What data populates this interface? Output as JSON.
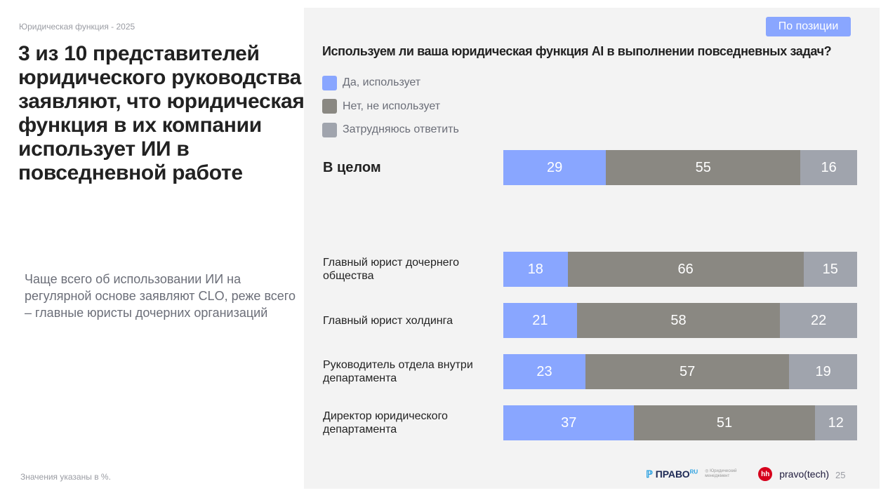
{
  "breadcrumb": "Юридическая функция - 2025",
  "headline": "3 из 10 представителей юридического руководства заявляют, что юридическая функция в их компании использует ИИ в повседневной работе",
  "note": "Чаще всего об использовании ИИ на регулярной основе заявляют CLO, реже всего – главные юристы дочерних организаций",
  "footnote": "Значения указаны в %.",
  "filter_button": "По позиции",
  "page_number": "25",
  "logos": {
    "pravo": "ПРАВО",
    "pravo_sup": "RU",
    "yurmen": "Юридический менеджмент",
    "hh": "hh",
    "pravotech": "pravo(tech)"
  },
  "colors": {
    "yes": "#89a6ff",
    "no": "#8a8882",
    "unsure": "#a0a4ad"
  },
  "chart_data": {
    "type": "bar",
    "stacked": true,
    "orientation": "horizontal",
    "title": "Используем ли ваша юридическая функция AI в выполнении повседневных задач?",
    "legend": [
      "Да, использует",
      "Нет, не использует",
      "Затрудняюсь ответить"
    ],
    "legend_position": "top-left",
    "categories": [
      "В целом",
      "Главный юрист дочернего общества",
      "Главный юрист холдинга",
      "Руководитель отдела внутри департамента",
      "Директор юридического департамента"
    ],
    "series": [
      {
        "name": "Да, использует",
        "values": [
          29,
          18,
          21,
          23,
          37
        ]
      },
      {
        "name": "Нет, не использует",
        "values": [
          55,
          66,
          58,
          57,
          51
        ]
      },
      {
        "name": "Затрудняюсь ответить",
        "values": [
          16,
          15,
          22,
          19,
          12
        ]
      }
    ]
  }
}
